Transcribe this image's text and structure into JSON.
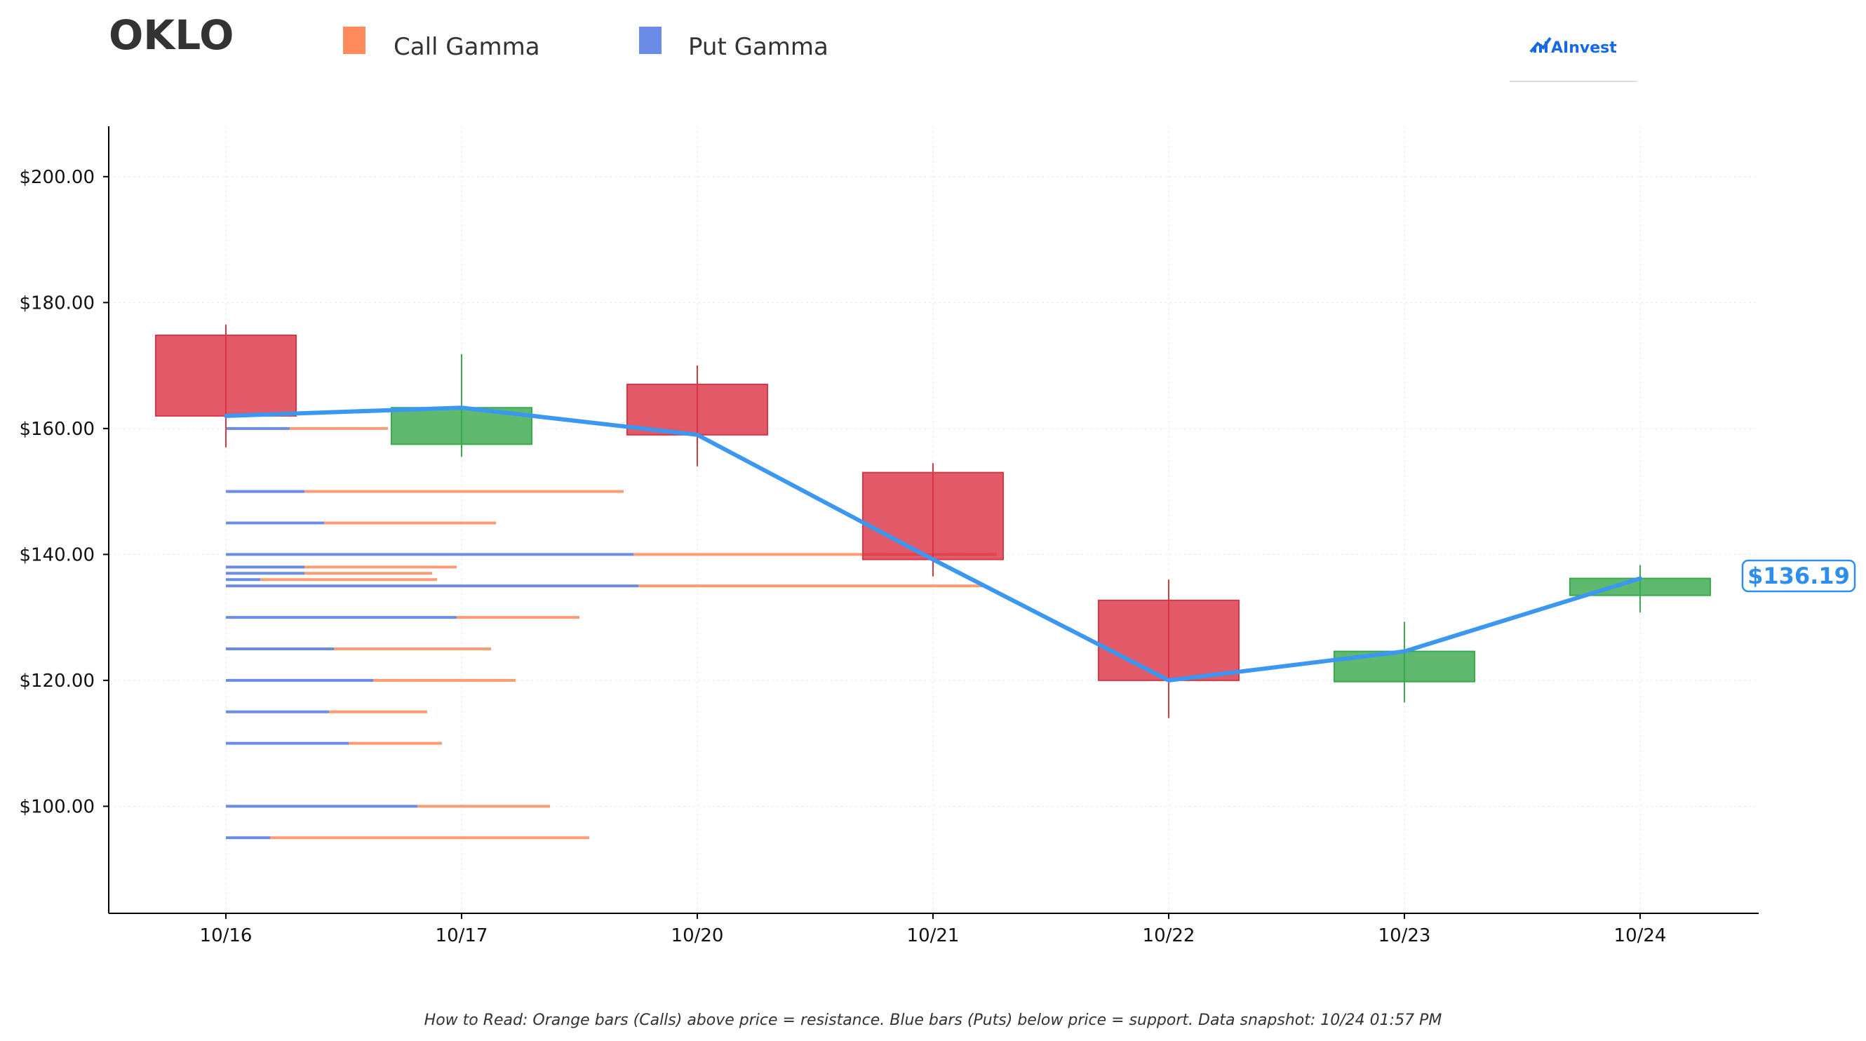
{
  "header": {
    "ticker": "OKLO",
    "brand": "AInvest"
  },
  "legend": {
    "call_label": "Call Gamma",
    "put_label": "Put Gamma"
  },
  "footer": {
    "text": "How to Read: Orange bars (Calls) above price = resistance. Blue bars (Puts) below price = support. Data snapshot: 10/24 01:57 PM"
  },
  "price_label": "$136.19",
  "colors": {
    "up": "#3aaa4e",
    "down": "#dc3545",
    "call": "#ff8a5c",
    "put": "#6a8ce6",
    "line": "#3b97ef",
    "price_label": "#2b8ef0"
  },
  "chart_data": {
    "type": "candlestick",
    "categories": [
      "10/16",
      "10/17",
      "10/20",
      "10/21",
      "10/22",
      "10/23",
      "10/24"
    ],
    "ylim": [
      83,
      208
    ],
    "yticks": [
      100,
      120,
      140,
      160,
      180,
      200
    ],
    "ytick_labels": [
      "$100.00",
      "$120.00",
      "$140.00",
      "$160.00",
      "$180.00",
      "$200.00"
    ],
    "grid": true,
    "legend_position": "top-left",
    "candles": [
      {
        "date": "10/16",
        "open": 174.8,
        "high": 176.5,
        "low": 157.0,
        "close": 162.0
      },
      {
        "date": "10/17",
        "open": 157.5,
        "high": 171.8,
        "low": 155.5,
        "close": 163.3
      },
      {
        "date": "10/20",
        "open": 167.0,
        "high": 170.0,
        "low": 154.0,
        "close": 159.0
      },
      {
        "date": "10/21",
        "open": 153.0,
        "high": 154.5,
        "low": 136.5,
        "close": 139.2
      },
      {
        "date": "10/22",
        "open": 132.7,
        "high": 136.0,
        "low": 114.0,
        "close": 120.0
      },
      {
        "date": "10/23",
        "open": 119.8,
        "high": 129.3,
        "low": 116.5,
        "close": 124.6
      },
      {
        "date": "10/24",
        "open": 133.5,
        "high": 138.3,
        "low": 130.8,
        "close": 136.19
      }
    ],
    "series": [
      {
        "values": [
          162.0,
          163.3,
          159.0,
          139.2,
          120.0,
          124.6,
          136.19
        ]
      }
    ],
    "gamma_levels": [
      {
        "strike": 160,
        "put": 0.65,
        "call": 1.0
      },
      {
        "strike": 150,
        "put": 0.8,
        "call": 3.25
      },
      {
        "strike": 145,
        "put": 1.0,
        "call": 1.75
      },
      {
        "strike": 140,
        "put": 4.15,
        "call": 3.7
      },
      {
        "strike": 138,
        "put": 0.8,
        "call": 1.55
      },
      {
        "strike": 137,
        "put": 0.8,
        "call": 1.3
      },
      {
        "strike": 136,
        "put": 0.35,
        "call": 1.8
      },
      {
        "strike": 135,
        "put": 4.2,
        "call": 3.55
      },
      {
        "strike": 130,
        "put": 2.35,
        "call": 1.25
      },
      {
        "strike": 125,
        "put": 1.1,
        "call": 1.6
      },
      {
        "strike": 120,
        "put": 1.5,
        "call": 1.45
      },
      {
        "strike": 115,
        "put": 1.05,
        "call": 1.0
      },
      {
        "strike": 110,
        "put": 1.25,
        "call": 0.95
      },
      {
        "strike": 100,
        "put": 1.95,
        "call": 1.35
      },
      {
        "strike": 95,
        "put": 0.45,
        "call": 3.25
      }
    ]
  }
}
